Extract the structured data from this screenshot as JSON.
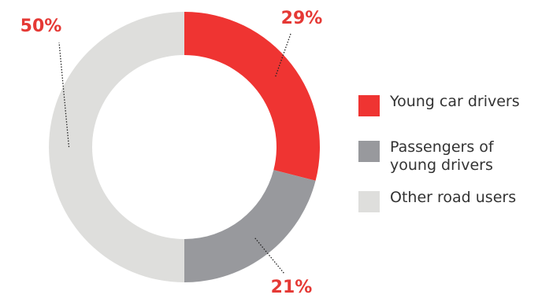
{
  "chart_data": {
    "type": "pie",
    "variant": "donut",
    "title": "",
    "categories": [
      "Young car drivers",
      "Passengers of young drivers",
      "Other road users"
    ],
    "values": [
      29,
      21,
      50
    ],
    "labels": [
      "29%",
      "21%",
      "50%"
    ],
    "colors": [
      "#ef3432",
      "#98999d",
      "#dededc"
    ],
    "label_color": "#e53935",
    "legend_placement": "right",
    "start_angle": "12 o'clock, clockwise"
  },
  "legend": {
    "items": [
      {
        "label": "Young car drivers",
        "color": "#ef3432"
      },
      {
        "label": "Passengers of\nyoung drivers",
        "color": "#98999d"
      },
      {
        "label": "Other road users",
        "color": "#dededc"
      }
    ]
  }
}
